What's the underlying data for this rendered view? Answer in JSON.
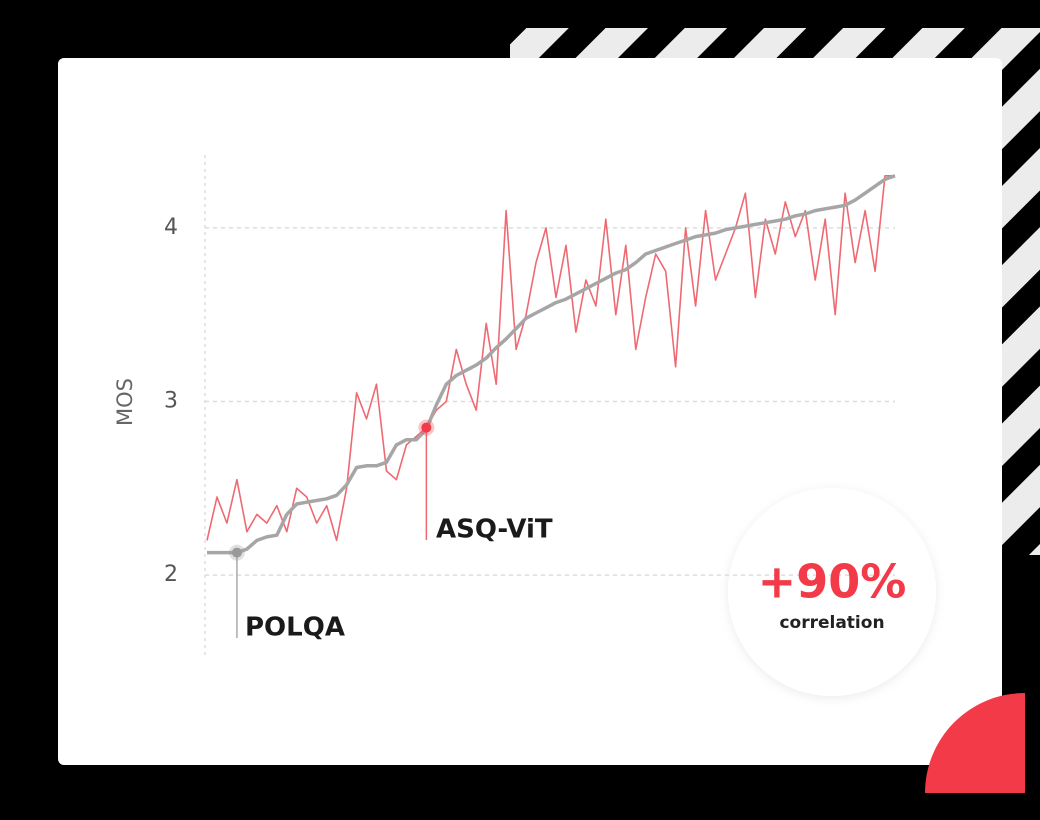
{
  "chart_data": {
    "type": "line",
    "ylabel": "MOS",
    "ylim": [
      1.54,
      4.42
    ],
    "yticks": [
      2,
      3,
      4
    ],
    "grid": true,
    "series": [
      {
        "name": "POLQA",
        "color": "#a6a6a6",
        "values": [
          2.13,
          2.13,
          2.13,
          2.13,
          2.15,
          2.2,
          2.22,
          2.23,
          2.35,
          2.41,
          2.42,
          2.43,
          2.44,
          2.46,
          2.52,
          2.62,
          2.63,
          2.63,
          2.65,
          2.75,
          2.78,
          2.78,
          2.84,
          2.98,
          3.1,
          3.15,
          3.18,
          3.21,
          3.25,
          3.31,
          3.36,
          3.42,
          3.48,
          3.51,
          3.54,
          3.57,
          3.59,
          3.62,
          3.65,
          3.68,
          3.71,
          3.74,
          3.76,
          3.8,
          3.85,
          3.87,
          3.89,
          3.91,
          3.93,
          3.95,
          3.96,
          3.97,
          3.99,
          4.0,
          4.01,
          4.02,
          4.03,
          4.04,
          4.05,
          4.07,
          4.08,
          4.1,
          4.11,
          4.12,
          4.13,
          4.16,
          4.2,
          4.24,
          4.28,
          4.3
        ]
      },
      {
        "name": "ASQ-ViT",
        "color": "#ee6a72",
        "values": [
          2.2,
          2.45,
          2.3,
          2.55,
          2.25,
          2.35,
          2.3,
          2.4,
          2.25,
          2.5,
          2.45,
          2.3,
          2.4,
          2.2,
          2.5,
          3.05,
          2.9,
          3.1,
          2.6,
          2.55,
          2.75,
          2.8,
          2.85,
          2.95,
          3.0,
          3.3,
          3.1,
          2.95,
          3.45,
          3.1,
          4.1,
          3.3,
          3.5,
          3.8,
          4.0,
          3.6,
          3.9,
          3.4,
          3.7,
          3.55,
          4.05,
          3.5,
          3.9,
          3.3,
          3.6,
          3.85,
          3.75,
          3.2,
          4.0,
          3.55,
          4.1,
          3.7,
          3.85,
          4.0,
          4.2,
          3.6,
          4.05,
          3.85,
          4.15,
          3.95,
          4.1,
          3.7,
          4.05,
          3.5,
          4.2,
          3.8,
          4.1,
          3.75,
          4.3,
          4.3
        ]
      }
    ],
    "badge": {
      "value_text": "+90%",
      "caption": "correlation",
      "color": "#f23a48"
    }
  }
}
